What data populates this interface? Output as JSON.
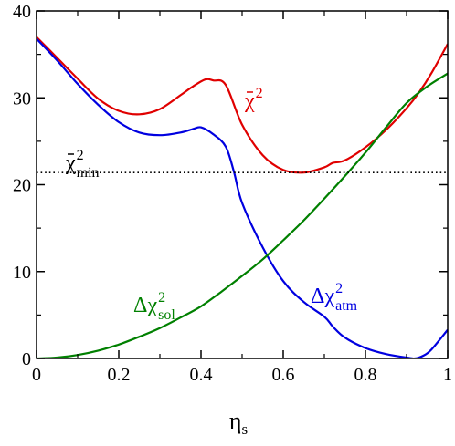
{
  "chart_data": {
    "type": "line",
    "xlabel": {
      "main": "η",
      "sub": "s"
    },
    "ylabel": "",
    "xlim": [
      0,
      1
    ],
    "ylim": [
      0,
      40
    ],
    "x_ticks": [
      0,
      0.2,
      0.4,
      0.6,
      0.8,
      1
    ],
    "x_tick_labels": [
      "0",
      "0.2",
      "0.4",
      "0.6",
      "0.8",
      "1"
    ],
    "y_ticks": [
      0,
      10,
      20,
      30,
      40
    ],
    "y_tick_labels": [
      "0",
      "10",
      "20",
      "30",
      "40"
    ],
    "grid": false,
    "colors": {
      "chi2_total": "#e00000",
      "chi2_atm": "#0000e0",
      "chi2_sol": "#008000",
      "chi2_min": "#000000"
    },
    "series": [
      {
        "key": "chi2_total",
        "x": [
          0,
          0.05,
          0.1,
          0.15,
          0.2,
          0.25,
          0.3,
          0.35,
          0.38,
          0.41,
          0.43,
          0.46,
          0.5,
          0.55,
          0.6,
          0.65,
          0.7,
          0.72,
          0.75,
          0.8,
          0.85,
          0.9,
          0.93,
          0.96,
          1.0
        ],
        "y": [
          37,
          34.6,
          32.2,
          29.9,
          28.5,
          28.1,
          28.7,
          30.3,
          31.3,
          32.1,
          32.0,
          31.5,
          26.9,
          23.4,
          21.7,
          21.4,
          22.0,
          22.5,
          22.8,
          24.3,
          26.3,
          28.8,
          30.6,
          32.8,
          36.2
        ]
      },
      {
        "key": "chi2_atm",
        "x": [
          0,
          0.05,
          0.1,
          0.15,
          0.2,
          0.25,
          0.3,
          0.35,
          0.38,
          0.4,
          0.43,
          0.46,
          0.48,
          0.5,
          0.55,
          0.6,
          0.65,
          0.7,
          0.72,
          0.75,
          0.8,
          0.85,
          0.9,
          0.92,
          0.94,
          0.96,
          1.0
        ],
        "y": [
          36.8,
          34.3,
          31.6,
          29.2,
          27.2,
          26.0,
          25.7,
          26.0,
          26.4,
          26.6,
          25.8,
          24.4,
          21.5,
          17.9,
          12.8,
          8.9,
          6.5,
          4.8,
          3.7,
          2.4,
          1.2,
          0.5,
          0.1,
          0.0,
          0.3,
          1.0,
          3.3
        ]
      },
      {
        "key": "chi2_sol",
        "x": [
          0,
          0.05,
          0.1,
          0.15,
          0.2,
          0.25,
          0.3,
          0.35,
          0.4,
          0.45,
          0.5,
          0.55,
          0.6,
          0.65,
          0.7,
          0.75,
          0.8,
          0.85,
          0.9,
          0.95,
          1.0
        ],
        "y": [
          0,
          0.1,
          0.4,
          0.9,
          1.6,
          2.5,
          3.5,
          4.7,
          6.0,
          7.7,
          9.5,
          11.4,
          13.6,
          15.9,
          18.4,
          21.0,
          23.7,
          26.6,
          29.4,
          31.3,
          32.8
        ]
      },
      {
        "key": "chi2_min",
        "style": "dotted",
        "x": [
          0,
          1
        ],
        "y": [
          21.4,
          21.4
        ]
      }
    ],
    "annotations": [
      {
        "key": "chi2_total",
        "base": "χ",
        "sup": "2",
        "sub": "",
        "bar": true,
        "prefix": ""
      },
      {
        "key": "chi2_min",
        "base": "χ",
        "sup": "2",
        "sub": "min",
        "bar": true,
        "prefix": ""
      },
      {
        "key": "chi2_sol",
        "base": "χ",
        "sup": "2",
        "sub": "sol",
        "bar": false,
        "prefix": "Δ"
      },
      {
        "key": "chi2_atm",
        "base": "χ",
        "sup": "2",
        "sub": "atm",
        "bar": false,
        "prefix": "Δ"
      }
    ]
  }
}
